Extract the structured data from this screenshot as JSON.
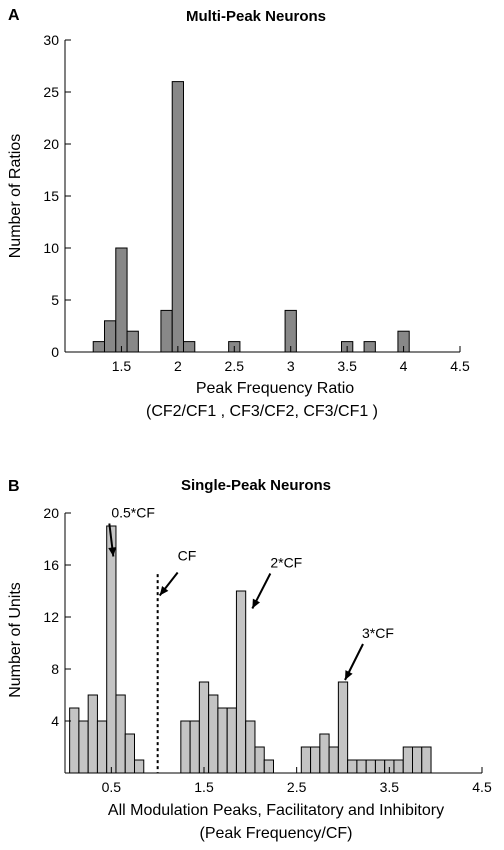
{
  "chart_data": [
    {
      "panel": "A",
      "type": "bar",
      "title": "Multi-Peak Neurons",
      "xlabel": "Peak Frequency Ratio",
      "xlabel2": "(CF2/CF1 , CF3/CF2, CF3/CF1 )",
      "ylabel": "Number of Ratios",
      "xlim": [
        1.0,
        4.5
      ],
      "ylim": [
        0,
        30
      ],
      "xticks": [
        "1.5",
        "2",
        "2.5",
        "3",
        "3.5",
        "4",
        "4.5"
      ],
      "yticks": [
        "0",
        "5",
        "10",
        "15",
        "20",
        "25",
        "30"
      ],
      "bin_width": 0.1,
      "bar_color": "#888888",
      "x": [
        1.3,
        1.4,
        1.5,
        1.6,
        1.9,
        2.0,
        2.1,
        2.5,
        3.0,
        3.5,
        3.7,
        4.0
      ],
      "values": [
        1,
        3,
        10,
        2,
        4,
        26,
        1,
        1,
        4,
        1,
        1,
        2
      ]
    },
    {
      "panel": "B",
      "type": "bar",
      "title": "Single-Peak Neurons",
      "xlabel": "All Modulation Peaks, Facilitatory and Inhibitory",
      "xlabel2": "(Peak Frequency/CF)",
      "ylabel": "Number of Units",
      "xlim": [
        0,
        4.5
      ],
      "ylim": [
        0,
        20
      ],
      "xticks": [
        "0.5",
        "1.5",
        "2.5",
        "3.5",
        "4.5"
      ],
      "yticks": [
        "4",
        "8",
        "12",
        "16",
        "20"
      ],
      "bin_width": 0.1,
      "bar_color": "#c4c4c4",
      "x": [
        0.1,
        0.2,
        0.3,
        0.4,
        0.5,
        0.6,
        0.7,
        0.8,
        1.3,
        1.4,
        1.5,
        1.6,
        1.7,
        1.8,
        1.9,
        2.0,
        2.1,
        2.2,
        2.6,
        2.7,
        2.8,
        2.9,
        3.0,
        3.1,
        3.2,
        3.3,
        3.4,
        3.5,
        3.6,
        3.7,
        3.8,
        3.9
      ],
      "values": [
        5,
        4,
        6,
        4,
        19,
        6,
        3,
        1,
        4,
        4,
        7,
        6,
        5,
        5,
        14,
        4,
        2,
        1,
        2,
        2,
        3,
        2,
        7,
        1,
        1,
        1,
        1,
        1,
        1,
        2,
        2,
        2
      ],
      "cf_line_x": 1.0,
      "annotations": [
        {
          "label": "0.5*CF",
          "target_x": 0.5,
          "target_y": 16.5
        },
        {
          "label": "CF",
          "target_x": 1.0,
          "target_y": 13.5
        },
        {
          "label": "2*CF",
          "target_x": 2.0,
          "target_y": 12.5
        },
        {
          "label": "3*CF",
          "target_x": 3.0,
          "target_y": 7.0
        }
      ]
    }
  ]
}
